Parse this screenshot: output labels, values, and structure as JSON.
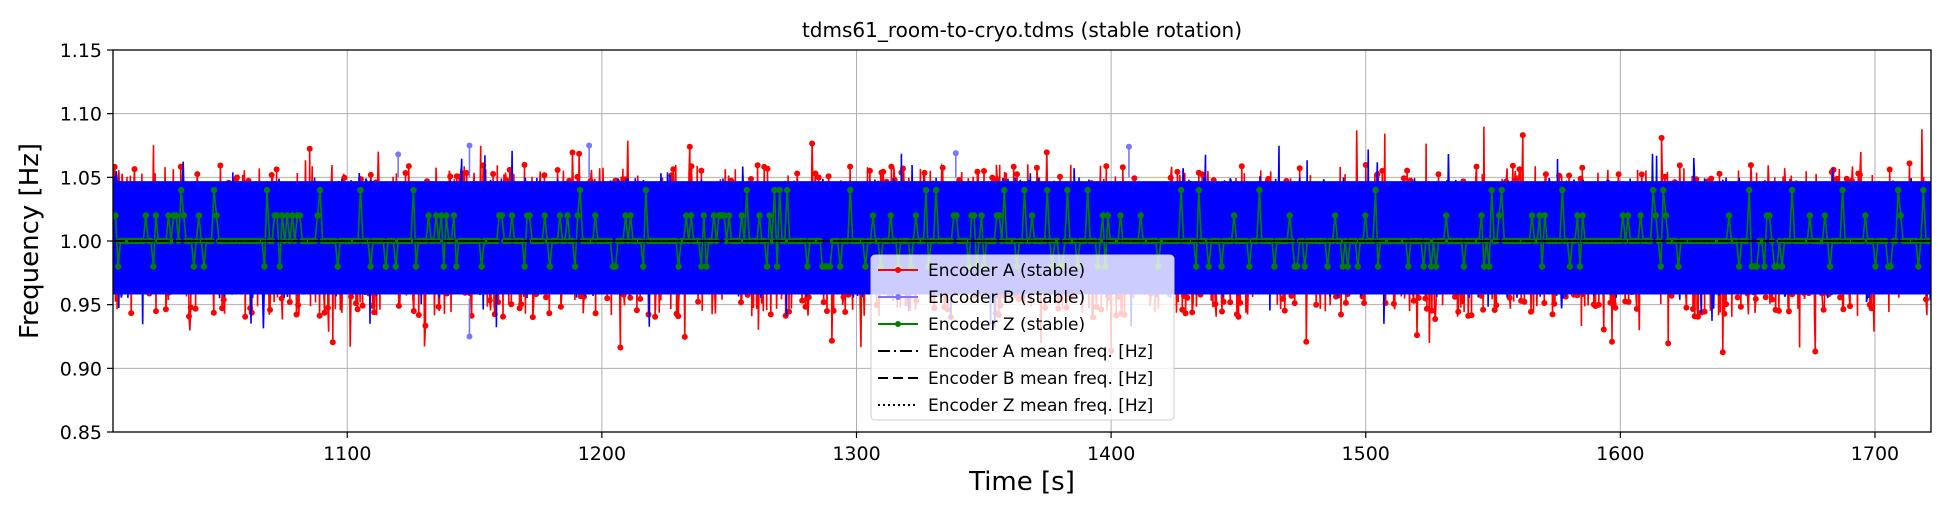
{
  "chart_data": {
    "type": "line",
    "title": "tdms61_room-to-cryo.tdms (stable rotation)",
    "xlabel": "Time [s]",
    "ylabel": "Frequency [Hz]",
    "xlim": [
      1008,
      1722
    ],
    "ylim": [
      0.85,
      1.15
    ],
    "x_ticks": [
      1100,
      1200,
      1300,
      1400,
      1500,
      1600,
      1700
    ],
    "y_ticks": [
      0.85,
      0.9,
      0.95,
      1.0,
      1.05,
      1.1,
      1.15
    ],
    "grid": true,
    "legend_position": "lower center",
    "series": [
      {
        "name": "Encoder A (stable)",
        "color": "#ff0000",
        "style": "line-marker",
        "band": [
          0.94,
          1.06
        ],
        "x_range": [
          1008,
          1722
        ]
      },
      {
        "name": "Encoder B (stable)",
        "color": "#0000ff",
        "style": "line-marker-faded",
        "band": [
          0.955,
          1.05
        ],
        "x_range": [
          1008,
          1722
        ]
      },
      {
        "name": "Encoder Z (stable)",
        "color": "#008000",
        "style": "line-marker",
        "levels": [
          0.98,
          1.0,
          1.02,
          1.04
        ],
        "x_range": [
          1008,
          1722
        ]
      },
      {
        "name": "Encoder A mean freq. [Hz]",
        "color": "#000000",
        "style": "dashdot",
        "value": 1.0
      },
      {
        "name": "Encoder B mean freq. [Hz]",
        "color": "#000000",
        "style": "dashed",
        "value": 1.0
      },
      {
        "name": "Encoder Z mean freq. [Hz]",
        "color": "#000000",
        "style": "dotted",
        "value": 1.0
      }
    ]
  }
}
